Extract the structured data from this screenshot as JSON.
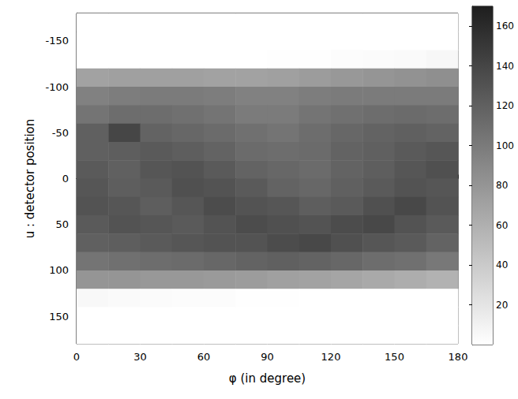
{
  "chart_data": {
    "type": "heatmap",
    "xlabel": "φ (in degree)",
    "ylabel": "u : detector position",
    "x_bins": [
      0,
      15,
      30,
      45,
      60,
      75,
      90,
      105,
      120,
      135,
      150,
      165,
      180
    ],
    "y_bins": [
      -180,
      -160,
      -140,
      -120,
      -100,
      -80,
      -60,
      -40,
      -20,
      0,
      20,
      40,
      60,
      80,
      100,
      120,
      140,
      160,
      180
    ],
    "cells": [
      [
        0,
        0,
        0,
        0,
        0,
        0,
        0,
        0,
        0,
        0,
        0,
        0
      ],
      [
        0,
        0,
        0,
        0,
        0,
        0,
        0,
        0,
        0,
        0,
        0,
        0
      ],
      [
        0,
        0,
        0,
        0,
        0,
        0,
        1,
        1,
        2,
        3,
        4,
        6
      ],
      [
        70,
        72,
        72,
        72,
        70,
        70,
        72,
        75,
        78,
        80,
        82,
        85
      ],
      [
        95,
        98,
        100,
        100,
        98,
        95,
        95,
        98,
        100,
        100,
        100,
        100
      ],
      [
        105,
        110,
        110,
        108,
        105,
        100,
        100,
        105,
        108,
        110,
        112,
        110
      ],
      [
        120,
        140,
        118,
        115,
        112,
        108,
        105,
        110,
        115,
        118,
        120,
        118
      ],
      [
        120,
        122,
        125,
        122,
        118,
        112,
        110,
        112,
        118,
        120,
        125,
        128
      ],
      [
        125,
        120,
        128,
        130,
        125,
        118,
        115,
        112,
        118,
        122,
        128,
        132
      ],
      [
        128,
        122,
        125,
        132,
        130,
        125,
        118,
        115,
        120,
        125,
        130,
        128
      ],
      [
        130,
        128,
        122,
        128,
        135,
        130,
        128,
        122,
        125,
        132,
        138,
        130
      ],
      [
        125,
        130,
        128,
        125,
        130,
        135,
        132,
        130,
        135,
        138,
        130,
        125
      ],
      [
        120,
        122,
        125,
        128,
        130,
        130,
        135,
        138,
        132,
        128,
        125,
        118
      ],
      [
        105,
        108,
        110,
        112,
        115,
        118,
        120,
        118,
        115,
        110,
        108,
        102
      ],
      [
        80,
        80,
        78,
        78,
        76,
        75,
        72,
        70,
        68,
        65,
        62,
        58
      ],
      [
        5,
        4,
        3,
        2,
        2,
        1,
        1,
        0,
        0,
        0,
        0,
        0
      ],
      [
        0,
        0,
        0,
        0,
        0,
        0,
        0,
        0,
        0,
        0,
        0,
        0
      ],
      [
        0,
        0,
        0,
        0,
        0,
        0,
        0,
        0,
        0,
        0,
        0,
        0
      ]
    ],
    "xlim": [
      0,
      180
    ],
    "xticks": [
      0,
      30,
      60,
      90,
      120,
      150,
      180
    ],
    "ylim": [
      -180,
      180
    ],
    "yticks": [
      -150,
      -100,
      -50,
      0,
      50,
      100,
      150
    ],
    "colorbar_lim": [
      0,
      170
    ],
    "colorbar_ticks": [
      20,
      40,
      60,
      80,
      100,
      120,
      140,
      160
    ]
  }
}
